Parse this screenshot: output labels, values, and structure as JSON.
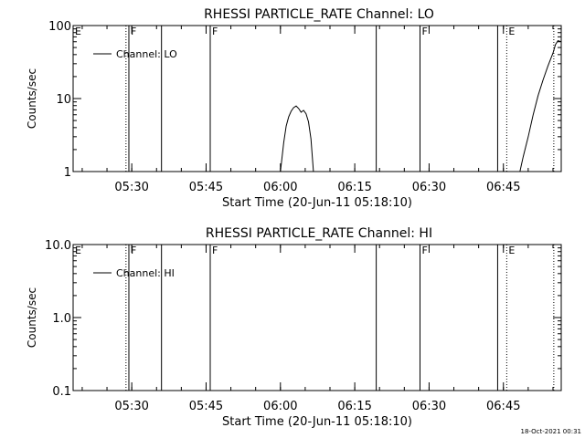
{
  "footer": {
    "timestamp": "18-Oct-2021 00:31"
  },
  "chart_data": [
    {
      "type": "line",
      "title": "RHESSI PARTICLE_RATE Channel: LO",
      "xlabel": "Start Time (20-Jun-11 05:18:10)",
      "ylabel": "Counts/sec",
      "y_scale": "log",
      "ylim": [
        1,
        100
      ],
      "xlim": [
        "05:18:10",
        "06:56:40"
      ],
      "x_ticks": [
        "05:30",
        "05:45",
        "06:00",
        "06:15",
        "06:30",
        "06:45"
      ],
      "y_ticks": [
        "1",
        "10",
        "100"
      ],
      "legend": {
        "position": "top-left",
        "entries": [
          "Channel: LO"
        ]
      },
      "series": [
        {
          "name": "Channel: LO",
          "color": "#000000",
          "segments": [
            [
              [
                "06:00:00",
                1.0
              ],
              [
                "06:00:40",
                2.5
              ],
              [
                "06:01:10",
                4.2
              ],
              [
                "06:01:40",
                5.6
              ],
              [
                "06:02:10",
                6.7
              ],
              [
                "06:02:40",
                7.5
              ],
              [
                "06:03:10",
                7.9
              ],
              [
                "06:03:40",
                7.3
              ],
              [
                "06:04:10",
                6.5
              ],
              [
                "06:04:40",
                6.9
              ],
              [
                "06:05:10",
                6.2
              ],
              [
                "06:05:40",
                4.8
              ],
              [
                "06:06:10",
                2.8
              ],
              [
                "06:06:40",
                1.0
              ]
            ],
            [
              [
                "06:48:20",
                1.0
              ],
              [
                "06:49:00",
                1.6
              ],
              [
                "06:50:00",
                3.0
              ],
              [
                "06:51:00",
                6.0
              ],
              [
                "06:52:00",
                11.0
              ],
              [
                "06:53:00",
                18.0
              ],
              [
                "06:54:00",
                28.0
              ],
              [
                "06:55:00",
                42.0
              ],
              [
                "06:55:30",
                55.0
              ],
              [
                "06:56:00",
                62.0
              ],
              [
                "06:56:40",
                60.0
              ]
            ]
          ]
        }
      ],
      "markers": [
        {
          "time": "05:28:50",
          "style": "dotted",
          "label": ""
        },
        {
          "time": "05:29:25",
          "style": "solid",
          "label": "F"
        },
        {
          "time": "05:36:00",
          "style": "solid",
          "label": ""
        },
        {
          "time": "05:45:50",
          "style": "solid",
          "label": "F"
        },
        {
          "time": "06:19:20",
          "style": "solid",
          "label": ""
        },
        {
          "time": "06:28:10",
          "style": "solid",
          "label": "F"
        },
        {
          "time": "06:43:50",
          "style": "solid",
          "label": ""
        },
        {
          "time": "06:45:40",
          "style": "dotted",
          "label": "E"
        },
        {
          "time": "06:55:10",
          "style": "dotted",
          "label": ""
        }
      ],
      "edge_label": "E"
    },
    {
      "type": "line",
      "title": "RHESSI PARTICLE_RATE Channel: HI",
      "xlabel": "Start Time (20-Jun-11 05:18:10)",
      "ylabel": "Counts/sec",
      "y_scale": "log",
      "ylim": [
        0.1,
        10
      ],
      "xlim": [
        "05:18:10",
        "06:56:40"
      ],
      "x_ticks": [
        "05:30",
        "05:45",
        "06:00",
        "06:15",
        "06:30",
        "06:45"
      ],
      "y_ticks": [
        "0.1",
        "1.0",
        "10.0"
      ],
      "legend": {
        "position": "top-left",
        "entries": [
          "Channel: HI"
        ]
      },
      "series": [
        {
          "name": "Channel: HI",
          "color": "#000000",
          "segments": []
        }
      ],
      "markers": [
        {
          "time": "05:28:50",
          "style": "dotted",
          "label": ""
        },
        {
          "time": "05:29:25",
          "style": "solid",
          "label": "F"
        },
        {
          "time": "05:36:00",
          "style": "solid",
          "label": ""
        },
        {
          "time": "05:45:50",
          "style": "solid",
          "label": "F"
        },
        {
          "time": "06:19:20",
          "style": "solid",
          "label": ""
        },
        {
          "time": "06:28:10",
          "style": "solid",
          "label": "F"
        },
        {
          "time": "06:43:50",
          "style": "solid",
          "label": ""
        },
        {
          "time": "06:45:40",
          "style": "dotted",
          "label": "E"
        },
        {
          "time": "06:55:10",
          "style": "dotted",
          "label": ""
        }
      ],
      "edge_label": "E"
    }
  ]
}
